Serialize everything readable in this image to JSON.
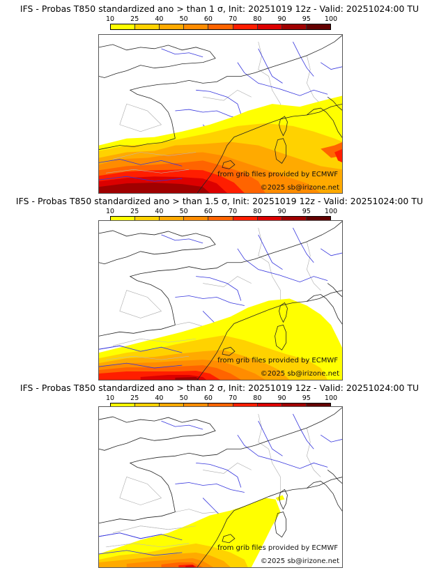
{
  "panels": [
    {
      "title": "IFS - Probas T850  standardized ano > than 1 σ, Init: 20251019 12z - Valid: 20251024:00 TU",
      "threshold_sigma": 1,
      "credit": "from grib files provided by ECMWF",
      "copyright": "©2025 sb@irizone.net"
    },
    {
      "title": "IFS - Probas T850  standardized ano > than 1.5 σ, Init: 20251019 12z - Valid: 20251024:00 TU",
      "threshold_sigma": 1.5,
      "credit": "from grib files provided by ECMWF",
      "copyright": "©2025 sb@irizone.net"
    },
    {
      "title": "IFS - Probas T850  standardized ano > than 2 σ, Init: 20251019 12z - Valid: 20251024:00 TU",
      "threshold_sigma": 2,
      "credit": "from grib files provided by ECMWF",
      "copyright": "©2025 sb@irizone.net"
    }
  ],
  "colorbar": {
    "ticks": [
      "10",
      "25",
      "40",
      "50",
      "60",
      "70",
      "80",
      "90",
      "95",
      "100"
    ],
    "colors": [
      "#ffff00",
      "#ffd200",
      "#ffaa00",
      "#ff8c00",
      "#ff6400",
      "#ff1e00",
      "#dc0000",
      "#a00000",
      "#640000"
    ]
  },
  "model": "IFS",
  "variable": "T850 standardized anomaly probability (%)",
  "init": "20251019 12z",
  "valid": "20251024:00 TU"
}
